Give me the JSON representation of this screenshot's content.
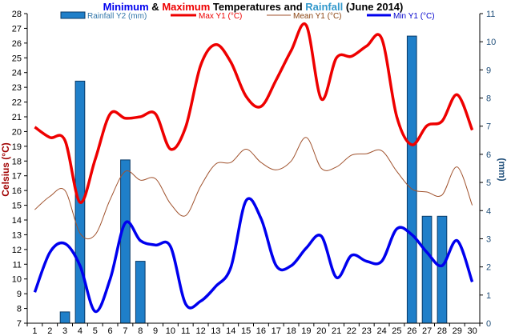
{
  "chart_data": {
    "type": "line",
    "title_parts": [
      {
        "text": "Minimum",
        "color": "#0000ee"
      },
      {
        "text": " & ",
        "color": "#000000"
      },
      {
        "text": "Maximum",
        "color": "#ee0000"
      },
      {
        "text": " Temperatures and ",
        "color": "#000000"
      },
      {
        "text": "Rainfall",
        "color": "#3399cc"
      },
      {
        "text": " (June 2014)",
        "color": "#000000"
      }
    ],
    "ylabel_left": "Celsius (°C)",
    "ylabel_right": "(mm)",
    "ylim_left": [
      7,
      28
    ],
    "ylim_right": [
      0,
      11
    ],
    "x_ticks": [
      "1",
      "2",
      "3",
      "4",
      "5",
      "6",
      "7",
      "8",
      "9",
      "10",
      "11",
      "12",
      "13",
      "14",
      "15",
      "16",
      "17",
      "18",
      "19",
      "20",
      "21",
      "22",
      "23",
      "24",
      "25",
      "26",
      "27",
      "28",
      "29",
      "30"
    ],
    "y_ticks_left": [
      "7",
      "8",
      "9",
      "10",
      "11",
      "12",
      "13",
      "14",
      "15",
      "16",
      "17",
      "18",
      "19",
      "20",
      "21",
      "22",
      "23",
      "24",
      "25",
      "26",
      "27",
      "28"
    ],
    "y_ticks_right": [
      "0",
      "1",
      "2",
      "3",
      "4",
      "5",
      "6",
      "7",
      "8",
      "9",
      "10",
      "11"
    ],
    "legend": {
      "rain": "Rainfall Y2 (mm)",
      "max": "Max Y1 (°C)",
      "mean": "Mean Y1 (°C)",
      "min": "Min Y1 (°C)"
    },
    "series": [
      {
        "key": "max",
        "name": "Max Y1 (°C)",
        "color": "#ee0000",
        "values": [
          20.3,
          19.6,
          19.4,
          15.2,
          18.1,
          21.2,
          20.9,
          21.0,
          21.2,
          18.8,
          20.3,
          24.5,
          25.9,
          24.7,
          22.4,
          21.7,
          23.5,
          25.5,
          27.2,
          22.2,
          25.0,
          25.1,
          25.8,
          26.3,
          21.0,
          19.1,
          20.4,
          20.7,
          22.5,
          20.1
        ]
      },
      {
        "key": "mean",
        "name": "Mean Y1 (°C)",
        "color": "#a0522d",
        "values": [
          14.7,
          15.6,
          16.0,
          13.1,
          13.0,
          15.4,
          17.3,
          16.7,
          16.8,
          15.1,
          14.3,
          16.3,
          17.8,
          17.9,
          18.8,
          17.9,
          17.4,
          18.0,
          19.6,
          17.5,
          17.6,
          18.4,
          18.5,
          18.7,
          17.3,
          16.1,
          15.9,
          15.7,
          17.6,
          15.0
        ]
      },
      {
        "key": "min",
        "name": "Min Y1 (°C)",
        "color": "#0000ee",
        "values": [
          9.1,
          11.8,
          12.4,
          10.9,
          7.8,
          10.0,
          13.8,
          12.6,
          12.3,
          12.2,
          8.3,
          8.5,
          9.5,
          10.8,
          15.3,
          14.1,
          10.9,
          10.9,
          12.1,
          12.9,
          10.1,
          11.6,
          11.2,
          11.2,
          13.4,
          13.0,
          11.8,
          10.9,
          12.6,
          9.8
        ]
      }
    ],
    "rainfall": [
      0,
      0,
      0.4,
      8.6,
      0,
      0,
      5.8,
      2.2,
      0,
      0,
      0,
      0,
      0,
      0,
      0,
      0,
      0,
      0,
      0,
      0,
      0,
      0,
      0,
      0,
      0,
      10.2,
      3.8,
      3.8,
      0,
      0
    ],
    "rain_color": "#1f7fc9",
    "rain_border": "#0a3a66",
    "grid": false
  }
}
